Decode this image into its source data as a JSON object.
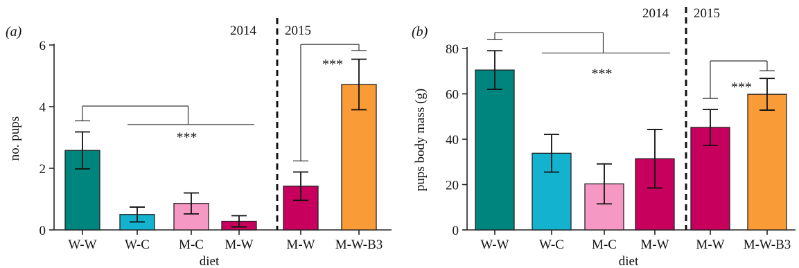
{
  "chart_data": [
    {
      "panel_label": "(a)",
      "type": "bar",
      "xlabel": "diet",
      "ylabel": "no. pups",
      "ylim": [
        0,
        6
      ],
      "yticks": [
        0,
        2,
        4,
        6
      ],
      "categories": [
        "W-W",
        "W-C",
        "M-C",
        "M-W",
        "M-W",
        "M-W-B3"
      ],
      "values": [
        2.58,
        0.5,
        0.86,
        0.28,
        1.42,
        4.72
      ],
      "errors": [
        0.6,
        0.24,
        0.34,
        0.18,
        0.46,
        0.82
      ],
      "colors": [
        "#00857e",
        "#13b2cf",
        "#f598c4",
        "#c8005d",
        "#c8005d",
        "#f99b36"
      ],
      "groups": [
        {
          "label": "2014",
          "start": 0,
          "end": 3
        },
        {
          "label": "2015",
          "start": 4,
          "end": 5
        }
      ],
      "significance": [
        {
          "label": "***",
          "bracket_from": [
            0
          ],
          "bracket_to": [
            1,
            2,
            3
          ],
          "top": 4.02,
          "inner": 3.42,
          "label_y": 3.05
        },
        {
          "label": "***",
          "bracket_from": [
            4
          ],
          "bracket_to": [
            5
          ],
          "top": 6.02,
          "inner": 5.82,
          "label_y": 5.42
        }
      ]
    },
    {
      "panel_label": "(b)",
      "type": "bar",
      "xlabel": "diet",
      "ylabel": "pups body mass (g)",
      "ylim": [
        0,
        80
      ],
      "yticks": [
        0,
        20,
        40,
        60,
        80
      ],
      "categories": [
        "W-W",
        "W-C",
        "M-C",
        "M-W",
        "M-W",
        "M-W-B3"
      ],
      "values": [
        70.5,
        33.8,
        20.3,
        31.4,
        45.2,
        59.8
      ],
      "errors": [
        8.5,
        8.3,
        8.8,
        12.9,
        7.9,
        7.0
      ],
      "colors": [
        "#00857e",
        "#13b2cf",
        "#f598c4",
        "#c8005d",
        "#c8005d",
        "#f99b36"
      ],
      "groups": [
        {
          "label": "2014",
          "start": 0,
          "end": 3
        },
        {
          "label": "2015",
          "start": 4,
          "end": 5
        }
      ],
      "significance": [
        {
          "label": "***",
          "bracket_from": [
            0
          ],
          "bracket_to": [
            1,
            2,
            3
          ],
          "top": 87.0,
          "inner": 78.0,
          "label_y": 69.5
        },
        {
          "label": "***",
          "bracket_from": [
            4
          ],
          "bracket_to": [
            5
          ],
          "top": 74.5,
          "inner": 70.2,
          "label_y": 63.5
        }
      ]
    }
  ]
}
